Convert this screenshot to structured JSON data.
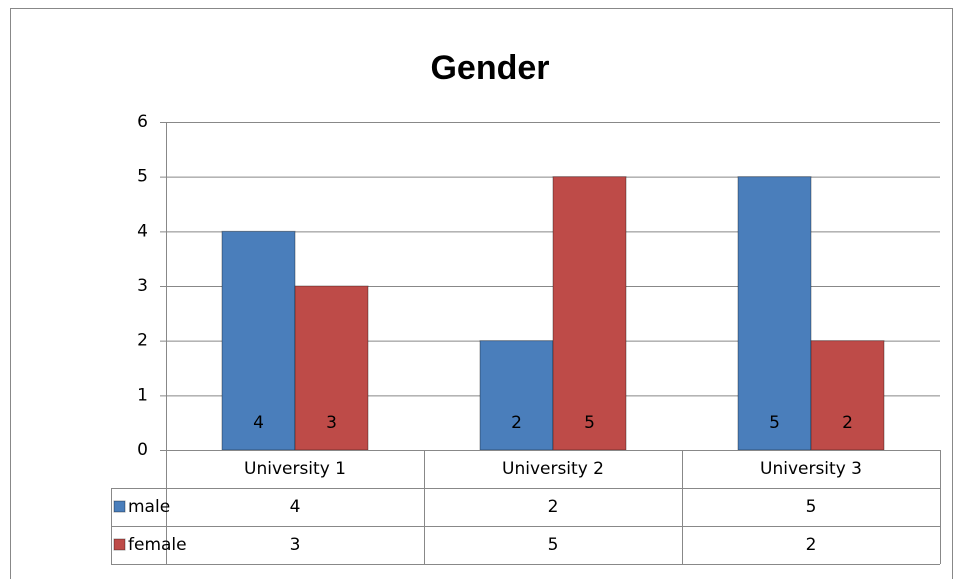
{
  "chart_data": {
    "type": "bar",
    "title": "Gender",
    "categories": [
      "University 1",
      "University 2",
      "University 3"
    ],
    "series": [
      {
        "name": "male",
        "color": "#4a7ebb",
        "values": [
          4,
          2,
          5
        ]
      },
      {
        "name": "female",
        "color": "#be4b48",
        "values": [
          3,
          5,
          2
        ]
      }
    ],
    "ylim": [
      0,
      6
    ],
    "yticks": [
      0,
      1,
      2,
      3,
      4,
      5,
      6
    ],
    "grid": true,
    "data_table": true
  }
}
